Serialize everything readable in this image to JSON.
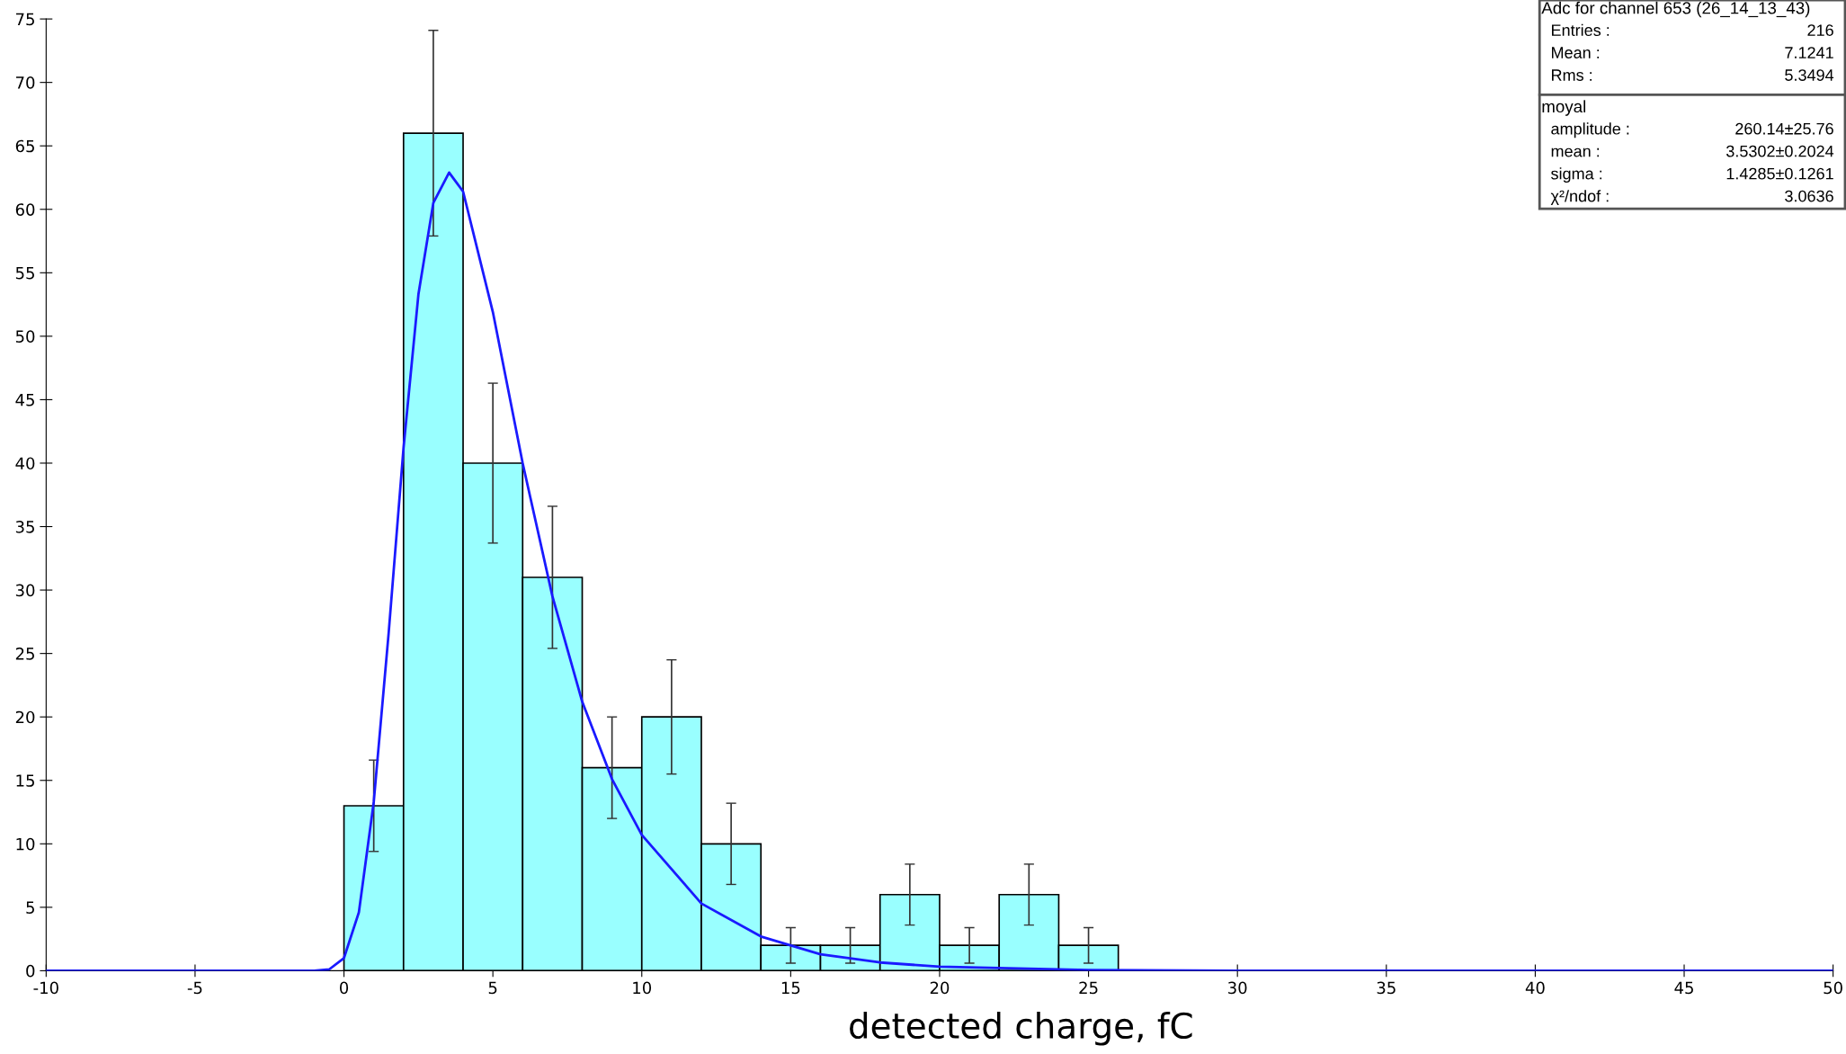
{
  "chart_data": {
    "type": "histogram",
    "xlabel": "detected charge, fC",
    "bins": [
      0,
      2,
      4,
      6,
      8,
      10,
      12,
      14,
      16,
      18,
      20,
      22,
      24,
      26
    ],
    "values": [
      13,
      66,
      40,
      31,
      16,
      20,
      10,
      2,
      2,
      6,
      2,
      6,
      2
    ],
    "errors": [
      3.6,
      8.1,
      6.3,
      5.6,
      4,
      4.5,
      3.2,
      1.4,
      1.4,
      2.4,
      1.4,
      2.4,
      1.4
    ],
    "color": "#99ffff",
    "series": [
      {
        "type": "line",
        "color": "#1a1aff",
        "x": [
          -10,
          -5,
          -1,
          -0.5,
          0,
          0.5,
          1,
          1.5,
          2,
          2.5,
          3,
          3.53,
          4,
          5,
          6,
          7,
          8,
          9,
          10,
          12,
          14,
          16,
          18,
          20,
          25,
          30,
          50
        ],
        "values": [
          0,
          0,
          0,
          0.1,
          1,
          4.6,
          13.3,
          26.6,
          41.2,
          53.3,
          60.5,
          62.9,
          61.4,
          51.9,
          40,
          29.5,
          21.2,
          15.1,
          10.7,
          5.3,
          2.7,
          1.3,
          0.65,
          0.32,
          0.06,
          0,
          0
        ]
      }
    ],
    "xlim": [
      -10,
      50
    ],
    "xticks": [
      -10,
      -5,
      0,
      5,
      10,
      15,
      20,
      25,
      30,
      35,
      40,
      45,
      50
    ],
    "ylim": [
      0,
      75
    ],
    "yticks": [
      0,
      5,
      10,
      15,
      20,
      25,
      30,
      35,
      40,
      45,
      50,
      55,
      60,
      65,
      70,
      75
    ],
    "grid": false,
    "annotations": [
      "Adc for channel 653 (26_14_13_43)",
      "Entries :",
      "216",
      "Mean :",
      "7.1241",
      "Rms :",
      "5.3494",
      "moyal",
      "amplitude :",
      "260.14±25.76",
      "mean :",
      "3.5302±0.2024",
      "sigma :",
      "1.4285±0.1261",
      "χ²/ndof :",
      "3.0636"
    ]
  }
}
